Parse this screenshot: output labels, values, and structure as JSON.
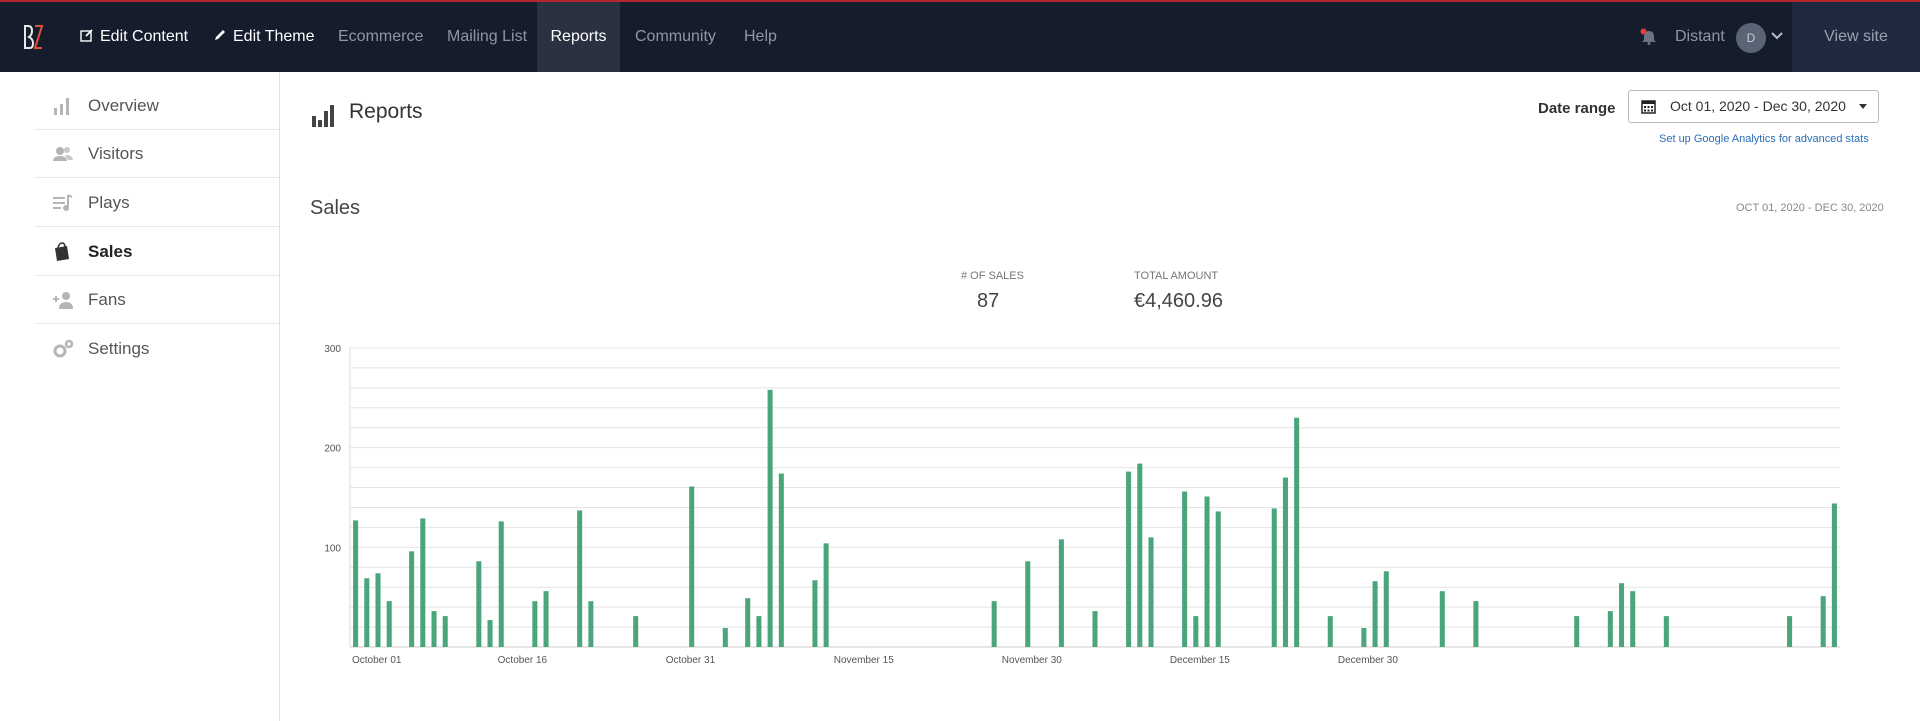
{
  "app": {
    "logo_text": "BZ",
    "nav": [
      {
        "label": "Edit Content",
        "icon": "edit-icon"
      },
      {
        "label": "Edit Theme",
        "icon": "pencil-icon"
      },
      {
        "label": "Ecommerce"
      },
      {
        "label": "Mailing List"
      },
      {
        "label": "Reports"
      },
      {
        "label": "Community"
      },
      {
        "label": "Help"
      }
    ],
    "user": {
      "name": "Distant",
      "avatar_initial": "D"
    },
    "view_site_label": "View site"
  },
  "sidebar": {
    "items": [
      {
        "label": "Overview",
        "icon": "bar-chart-icon"
      },
      {
        "label": "Visitors",
        "icon": "users-icon"
      },
      {
        "label": "Plays",
        "icon": "playlist-icon"
      },
      {
        "label": "Sales",
        "icon": "shopping-bag-icon",
        "active": true
      },
      {
        "label": "Fans",
        "icon": "add-user-icon"
      },
      {
        "label": "Settings",
        "icon": "gears-icon"
      }
    ]
  },
  "page": {
    "title": "Reports",
    "date_range_label": "Date range",
    "date_range_value": "Oct 01, 2020 - Dec 30, 2020",
    "ga_link": "Set up Google Analytics for advanced stats"
  },
  "sales": {
    "title": "Sales",
    "range_caption": "OCT 01, 2020 - DEC 30, 2020",
    "stats": [
      {
        "label": "# OF SALES",
        "value": "87"
      },
      {
        "label": "TOTAL AMOUNT",
        "value": "€4,460.96"
      }
    ]
  },
  "colors": {
    "accent_bar": "#4aa57a",
    "topbar": "#151c2c",
    "topbar_border": "#b3262e",
    "link": "#2a6fb8"
  },
  "chart_data": {
    "type": "bar",
    "ylim": [
      0,
      300
    ],
    "yticks": [
      100,
      200,
      300
    ],
    "grid": true,
    "x_tick_labels": [
      "October 01",
      "October 16",
      "October 31",
      "November 15",
      "November 30",
      "December 15",
      "December 30"
    ],
    "series": [
      {
        "values": [
          127,
          69,
          74,
          46,
          0,
          96,
          129,
          36,
          31,
          0,
          0,
          86,
          27,
          126,
          0,
          0,
          46,
          56,
          0,
          0,
          137,
          46,
          0,
          0,
          0,
          31,
          0,
          0,
          0,
          0,
          161,
          0,
          0,
          19,
          0,
          49,
          31,
          258,
          174,
          0,
          0,
          67,
          104,
          0,
          0,
          0,
          0,
          0,
          0,
          0,
          0,
          0,
          0,
          0,
          0,
          0,
          0,
          46,
          0,
          0,
          86,
          0,
          0,
          108,
          0,
          0,
          36,
          0,
          0,
          176,
          184,
          110,
          0,
          0,
          156,
          31,
          151,
          136,
          0,
          0,
          0,
          0,
          139,
          170,
          230,
          0,
          0,
          31,
          0,
          0,
          19,
          66,
          76,
          0,
          0,
          0,
          0,
          56,
          0,
          0,
          46,
          0,
          0,
          0,
          0,
          0,
          0,
          0,
          0,
          31,
          0,
          0,
          36,
          64,
          56,
          0,
          0,
          31,
          0,
          0,
          0,
          0,
          0,
          0,
          0,
          0,
          0,
          0,
          31,
          0,
          0,
          51,
          144
        ]
      }
    ]
  }
}
